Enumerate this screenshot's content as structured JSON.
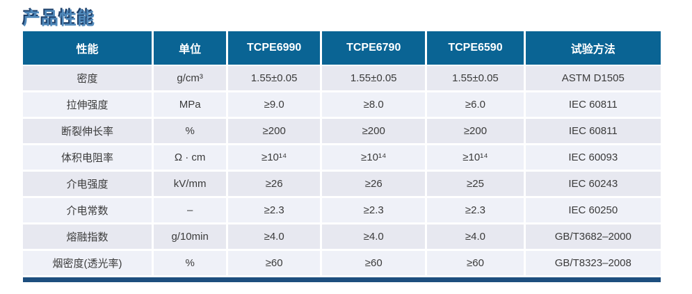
{
  "page": {
    "title": "产品性能"
  },
  "colors": {
    "header_bg": "#0a6494",
    "title_main": "#4f88ba",
    "title_shadow": "#1d3f69",
    "row_odd": "#e7e8f0",
    "row_even": "#eff1f8",
    "bottom_bar": "#1d4e7e"
  },
  "table": {
    "headers": [
      "性能",
      "单位",
      "TCPE6990",
      "TCPE6790",
      "TCPE6590",
      "试验方法"
    ],
    "rows": [
      [
        "密度",
        "g/cm³",
        "1.55±0.05",
        "1.55±0.05",
        "1.55±0.05",
        "ASTM D1505"
      ],
      [
        "拉伸强度",
        "MPa",
        "≥9.0",
        "≥8.0",
        "≥6.0",
        "IEC 60811"
      ],
      [
        "断裂伸长率",
        "%",
        "≥200",
        "≥200",
        "≥200",
        "IEC 60811"
      ],
      [
        "体积电阻率",
        "Ω · cm",
        "≥10¹⁴",
        "≥10¹⁴",
        "≥10¹⁴",
        "IEC 60093"
      ],
      [
        "介电强度",
        "kV/mm",
        "≥26",
        "≥26",
        "≥25",
        "IEC 60243"
      ],
      [
        "介电常数",
        "–",
        "≥2.3",
        "≥2.3",
        "≥2.3",
        "IEC 60250"
      ],
      [
        "熔融指数",
        "g/10min",
        "≥4.0",
        "≥4.0",
        "≥4.0",
        "GB/T3682–2000"
      ],
      [
        "烟密度(透光率)",
        "%",
        "≥60",
        "≥60",
        "≥60",
        "GB/T8323–2008"
      ]
    ]
  }
}
